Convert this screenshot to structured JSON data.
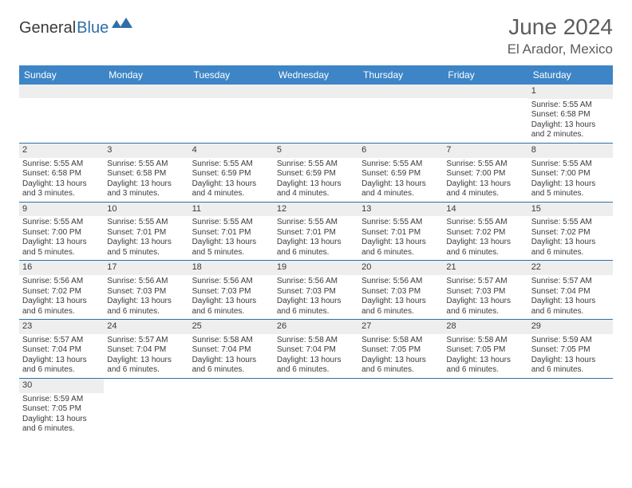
{
  "logo": {
    "text1": "General",
    "text2": "Blue"
  },
  "title": "June 2024",
  "subtitle": "El Arador, Mexico",
  "colors": {
    "header_bg": "#3d85c6",
    "header_text": "#ffffff",
    "row_divider": "#2f6fa8",
    "daynum_bg": "#eeeeee",
    "body_text": "#3a3a3a",
    "title_text": "#5c5c5c",
    "logo_blue": "#2f6fa8"
  },
  "day_names": [
    "Sunday",
    "Monday",
    "Tuesday",
    "Wednesday",
    "Thursday",
    "Friday",
    "Saturday"
  ],
  "weeks": [
    [
      null,
      null,
      null,
      null,
      null,
      null,
      {
        "n": "1",
        "sr": "Sunrise: 5:55 AM",
        "ss": "Sunset: 6:58 PM",
        "d1": "Daylight: 13 hours",
        "d2": "and 2 minutes."
      }
    ],
    [
      {
        "n": "2",
        "sr": "Sunrise: 5:55 AM",
        "ss": "Sunset: 6:58 PM",
        "d1": "Daylight: 13 hours",
        "d2": "and 3 minutes."
      },
      {
        "n": "3",
        "sr": "Sunrise: 5:55 AM",
        "ss": "Sunset: 6:58 PM",
        "d1": "Daylight: 13 hours",
        "d2": "and 3 minutes."
      },
      {
        "n": "4",
        "sr": "Sunrise: 5:55 AM",
        "ss": "Sunset: 6:59 PM",
        "d1": "Daylight: 13 hours",
        "d2": "and 4 minutes."
      },
      {
        "n": "5",
        "sr": "Sunrise: 5:55 AM",
        "ss": "Sunset: 6:59 PM",
        "d1": "Daylight: 13 hours",
        "d2": "and 4 minutes."
      },
      {
        "n": "6",
        "sr": "Sunrise: 5:55 AM",
        "ss": "Sunset: 6:59 PM",
        "d1": "Daylight: 13 hours",
        "d2": "and 4 minutes."
      },
      {
        "n": "7",
        "sr": "Sunrise: 5:55 AM",
        "ss": "Sunset: 7:00 PM",
        "d1": "Daylight: 13 hours",
        "d2": "and 4 minutes."
      },
      {
        "n": "8",
        "sr": "Sunrise: 5:55 AM",
        "ss": "Sunset: 7:00 PM",
        "d1": "Daylight: 13 hours",
        "d2": "and 5 minutes."
      }
    ],
    [
      {
        "n": "9",
        "sr": "Sunrise: 5:55 AM",
        "ss": "Sunset: 7:00 PM",
        "d1": "Daylight: 13 hours",
        "d2": "and 5 minutes."
      },
      {
        "n": "10",
        "sr": "Sunrise: 5:55 AM",
        "ss": "Sunset: 7:01 PM",
        "d1": "Daylight: 13 hours",
        "d2": "and 5 minutes."
      },
      {
        "n": "11",
        "sr": "Sunrise: 5:55 AM",
        "ss": "Sunset: 7:01 PM",
        "d1": "Daylight: 13 hours",
        "d2": "and 5 minutes."
      },
      {
        "n": "12",
        "sr": "Sunrise: 5:55 AM",
        "ss": "Sunset: 7:01 PM",
        "d1": "Daylight: 13 hours",
        "d2": "and 6 minutes."
      },
      {
        "n": "13",
        "sr": "Sunrise: 5:55 AM",
        "ss": "Sunset: 7:01 PM",
        "d1": "Daylight: 13 hours",
        "d2": "and 6 minutes."
      },
      {
        "n": "14",
        "sr": "Sunrise: 5:55 AM",
        "ss": "Sunset: 7:02 PM",
        "d1": "Daylight: 13 hours",
        "d2": "and 6 minutes."
      },
      {
        "n": "15",
        "sr": "Sunrise: 5:55 AM",
        "ss": "Sunset: 7:02 PM",
        "d1": "Daylight: 13 hours",
        "d2": "and 6 minutes."
      }
    ],
    [
      {
        "n": "16",
        "sr": "Sunrise: 5:56 AM",
        "ss": "Sunset: 7:02 PM",
        "d1": "Daylight: 13 hours",
        "d2": "and 6 minutes."
      },
      {
        "n": "17",
        "sr": "Sunrise: 5:56 AM",
        "ss": "Sunset: 7:03 PM",
        "d1": "Daylight: 13 hours",
        "d2": "and 6 minutes."
      },
      {
        "n": "18",
        "sr": "Sunrise: 5:56 AM",
        "ss": "Sunset: 7:03 PM",
        "d1": "Daylight: 13 hours",
        "d2": "and 6 minutes."
      },
      {
        "n": "19",
        "sr": "Sunrise: 5:56 AM",
        "ss": "Sunset: 7:03 PM",
        "d1": "Daylight: 13 hours",
        "d2": "and 6 minutes."
      },
      {
        "n": "20",
        "sr": "Sunrise: 5:56 AM",
        "ss": "Sunset: 7:03 PM",
        "d1": "Daylight: 13 hours",
        "d2": "and 6 minutes."
      },
      {
        "n": "21",
        "sr": "Sunrise: 5:57 AM",
        "ss": "Sunset: 7:03 PM",
        "d1": "Daylight: 13 hours",
        "d2": "and 6 minutes."
      },
      {
        "n": "22",
        "sr": "Sunrise: 5:57 AM",
        "ss": "Sunset: 7:04 PM",
        "d1": "Daylight: 13 hours",
        "d2": "and 6 minutes."
      }
    ],
    [
      {
        "n": "23",
        "sr": "Sunrise: 5:57 AM",
        "ss": "Sunset: 7:04 PM",
        "d1": "Daylight: 13 hours",
        "d2": "and 6 minutes."
      },
      {
        "n": "24",
        "sr": "Sunrise: 5:57 AM",
        "ss": "Sunset: 7:04 PM",
        "d1": "Daylight: 13 hours",
        "d2": "and 6 minutes."
      },
      {
        "n": "25",
        "sr": "Sunrise: 5:58 AM",
        "ss": "Sunset: 7:04 PM",
        "d1": "Daylight: 13 hours",
        "d2": "and 6 minutes."
      },
      {
        "n": "26",
        "sr": "Sunrise: 5:58 AM",
        "ss": "Sunset: 7:04 PM",
        "d1": "Daylight: 13 hours",
        "d2": "and 6 minutes."
      },
      {
        "n": "27",
        "sr": "Sunrise: 5:58 AM",
        "ss": "Sunset: 7:05 PM",
        "d1": "Daylight: 13 hours",
        "d2": "and 6 minutes."
      },
      {
        "n": "28",
        "sr": "Sunrise: 5:58 AM",
        "ss": "Sunset: 7:05 PM",
        "d1": "Daylight: 13 hours",
        "d2": "and 6 minutes."
      },
      {
        "n": "29",
        "sr": "Sunrise: 5:59 AM",
        "ss": "Sunset: 7:05 PM",
        "d1": "Daylight: 13 hours",
        "d2": "and 6 minutes."
      }
    ],
    [
      {
        "n": "30",
        "sr": "Sunrise: 5:59 AM",
        "ss": "Sunset: 7:05 PM",
        "d1": "Daylight: 13 hours",
        "d2": "and 6 minutes."
      },
      null,
      null,
      null,
      null,
      null,
      null
    ]
  ]
}
